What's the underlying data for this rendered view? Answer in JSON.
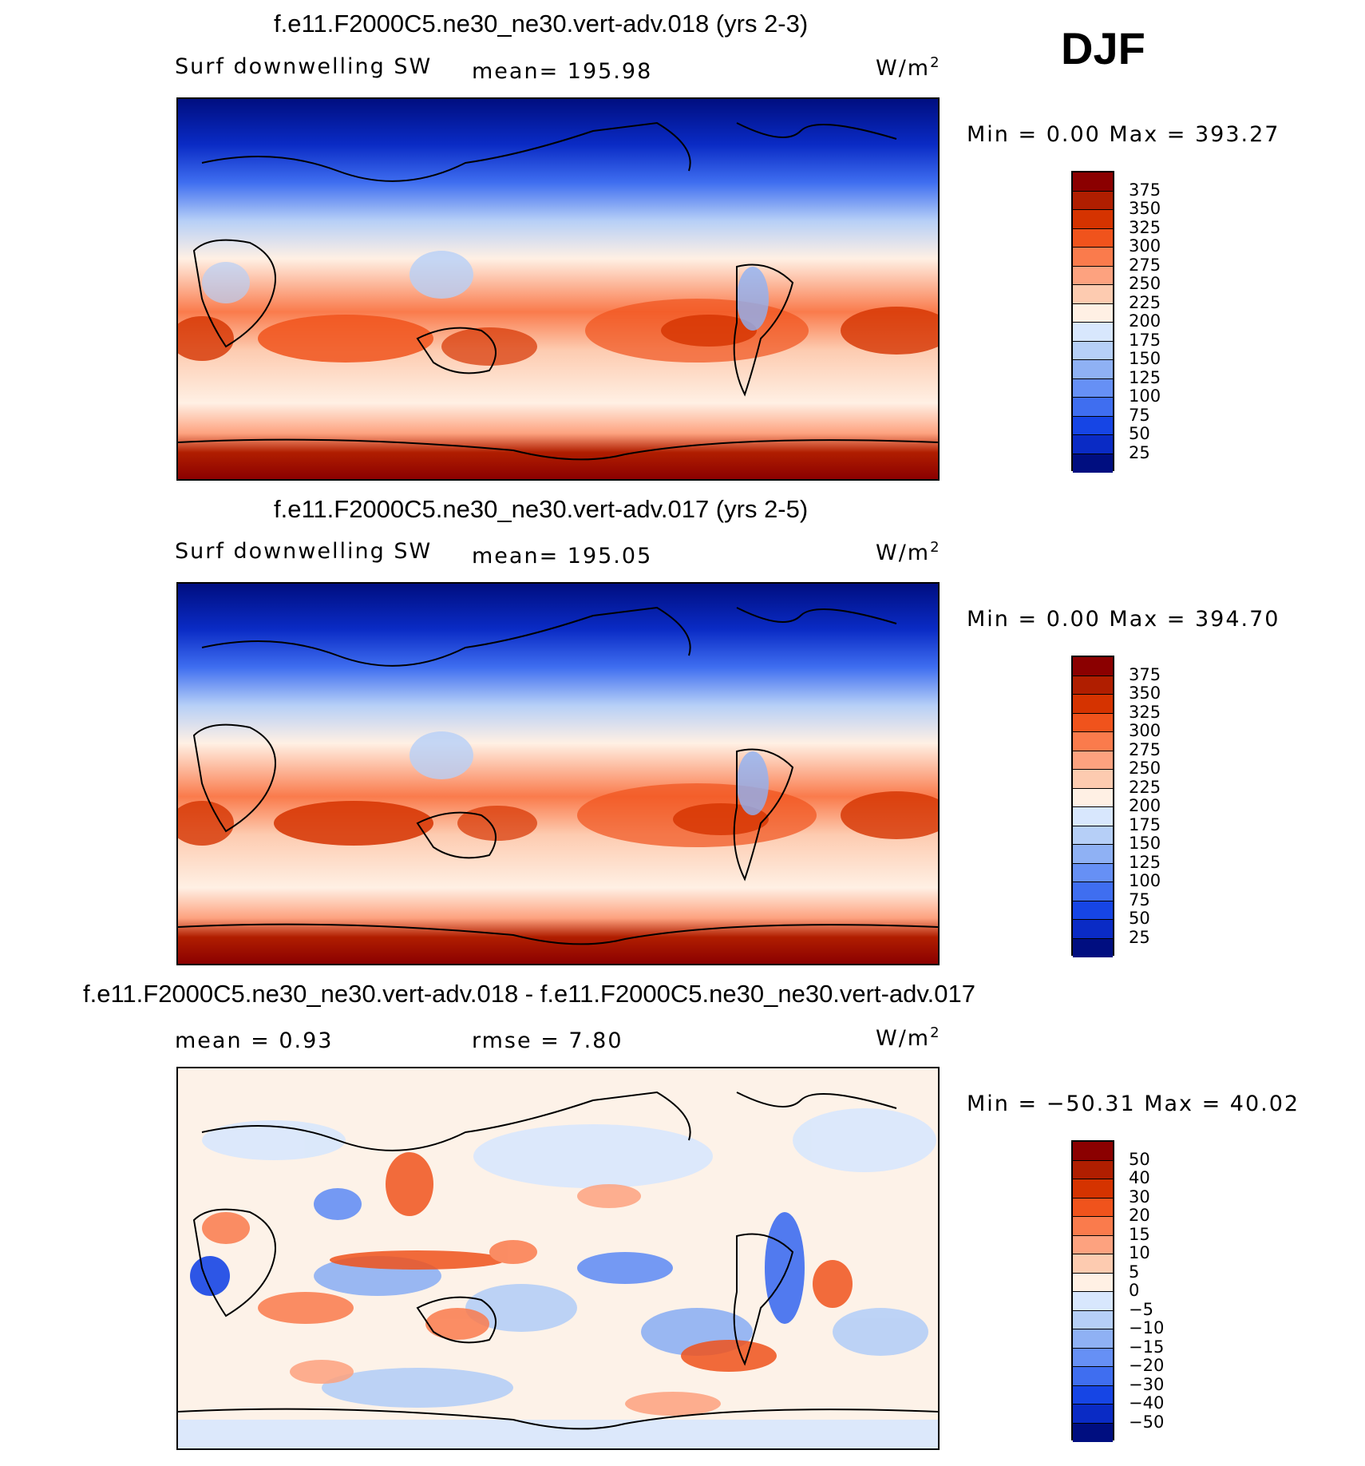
{
  "season": "DJF",
  "panels": [
    {
      "title": "f.e11.F2000C5.ne30_ne30.vert-adv.018 (yrs 2-3)",
      "left_label": "Surf downwelling SW",
      "center_label": "mean=  195.98",
      "unit": "W/m",
      "unit_sup": "2",
      "minmax": "Min =    0.00  Max  =  393.27",
      "colorbar_labels": [
        "375",
        "350",
        "325",
        "300",
        "275",
        "250",
        "225",
        "200",
        "175",
        "150",
        "125",
        "100",
        "75",
        "50",
        "25"
      ],
      "colors": [
        "#8b0000",
        "#b01e00",
        "#d53300",
        "#f0531c",
        "#fa7b4c",
        "#fda27f",
        "#fdcbb0",
        "#fff0e4",
        "#d8e7fd",
        "#b6cff7",
        "#8fb1f4",
        "#6690f5",
        "#3f6ef0",
        "#1645e5",
        "#0a2bc5",
        "#000e80"
      ]
    },
    {
      "title": "f.e11.F2000C5.ne30_ne30.vert-adv.017 (yrs 2-5)",
      "left_label": "Surf downwelling SW",
      "center_label": "mean=  195.05",
      "unit": "W/m",
      "unit_sup": "2",
      "minmax": "Min =    0.00  Max  =  394.70",
      "colorbar_labels": [
        "375",
        "350",
        "325",
        "300",
        "275",
        "250",
        "225",
        "200",
        "175",
        "150",
        "125",
        "100",
        "75",
        "50",
        "25"
      ],
      "colors": [
        "#8b0000",
        "#b01e00",
        "#d53300",
        "#f0531c",
        "#fa7b4c",
        "#fda27f",
        "#fdcbb0",
        "#fff0e4",
        "#d8e7fd",
        "#b6cff7",
        "#8fb1f4",
        "#6690f5",
        "#3f6ef0",
        "#1645e5",
        "#0a2bc5",
        "#000e80"
      ]
    },
    {
      "title": "f.e11.F2000C5.ne30_ne30.vert-adv.018 - f.e11.F2000C5.ne30_ne30.vert-adv.017",
      "left_label": "mean =     0.93",
      "center_label": "rmse =     7.80",
      "unit": "W/m",
      "unit_sup": "2",
      "minmax": "Min = −50.31  Max =    40.02",
      "colorbar_labels": [
        "50",
        "40",
        "30",
        "20",
        "15",
        "10",
        "5",
        "0",
        "−5",
        "−10",
        "−15",
        "−20",
        "−30",
        "−40",
        "−50"
      ],
      "colors": [
        "#8b0000",
        "#b01e00",
        "#d53300",
        "#f0531c",
        "#fa7b4c",
        "#fda27f",
        "#fdcbb0",
        "#fff0e4",
        "#d8e7fd",
        "#b6cff7",
        "#8fb1f4",
        "#6690f5",
        "#3f6ef0",
        "#1645e5",
        "#0a2bc5",
        "#000e80"
      ]
    }
  ]
}
